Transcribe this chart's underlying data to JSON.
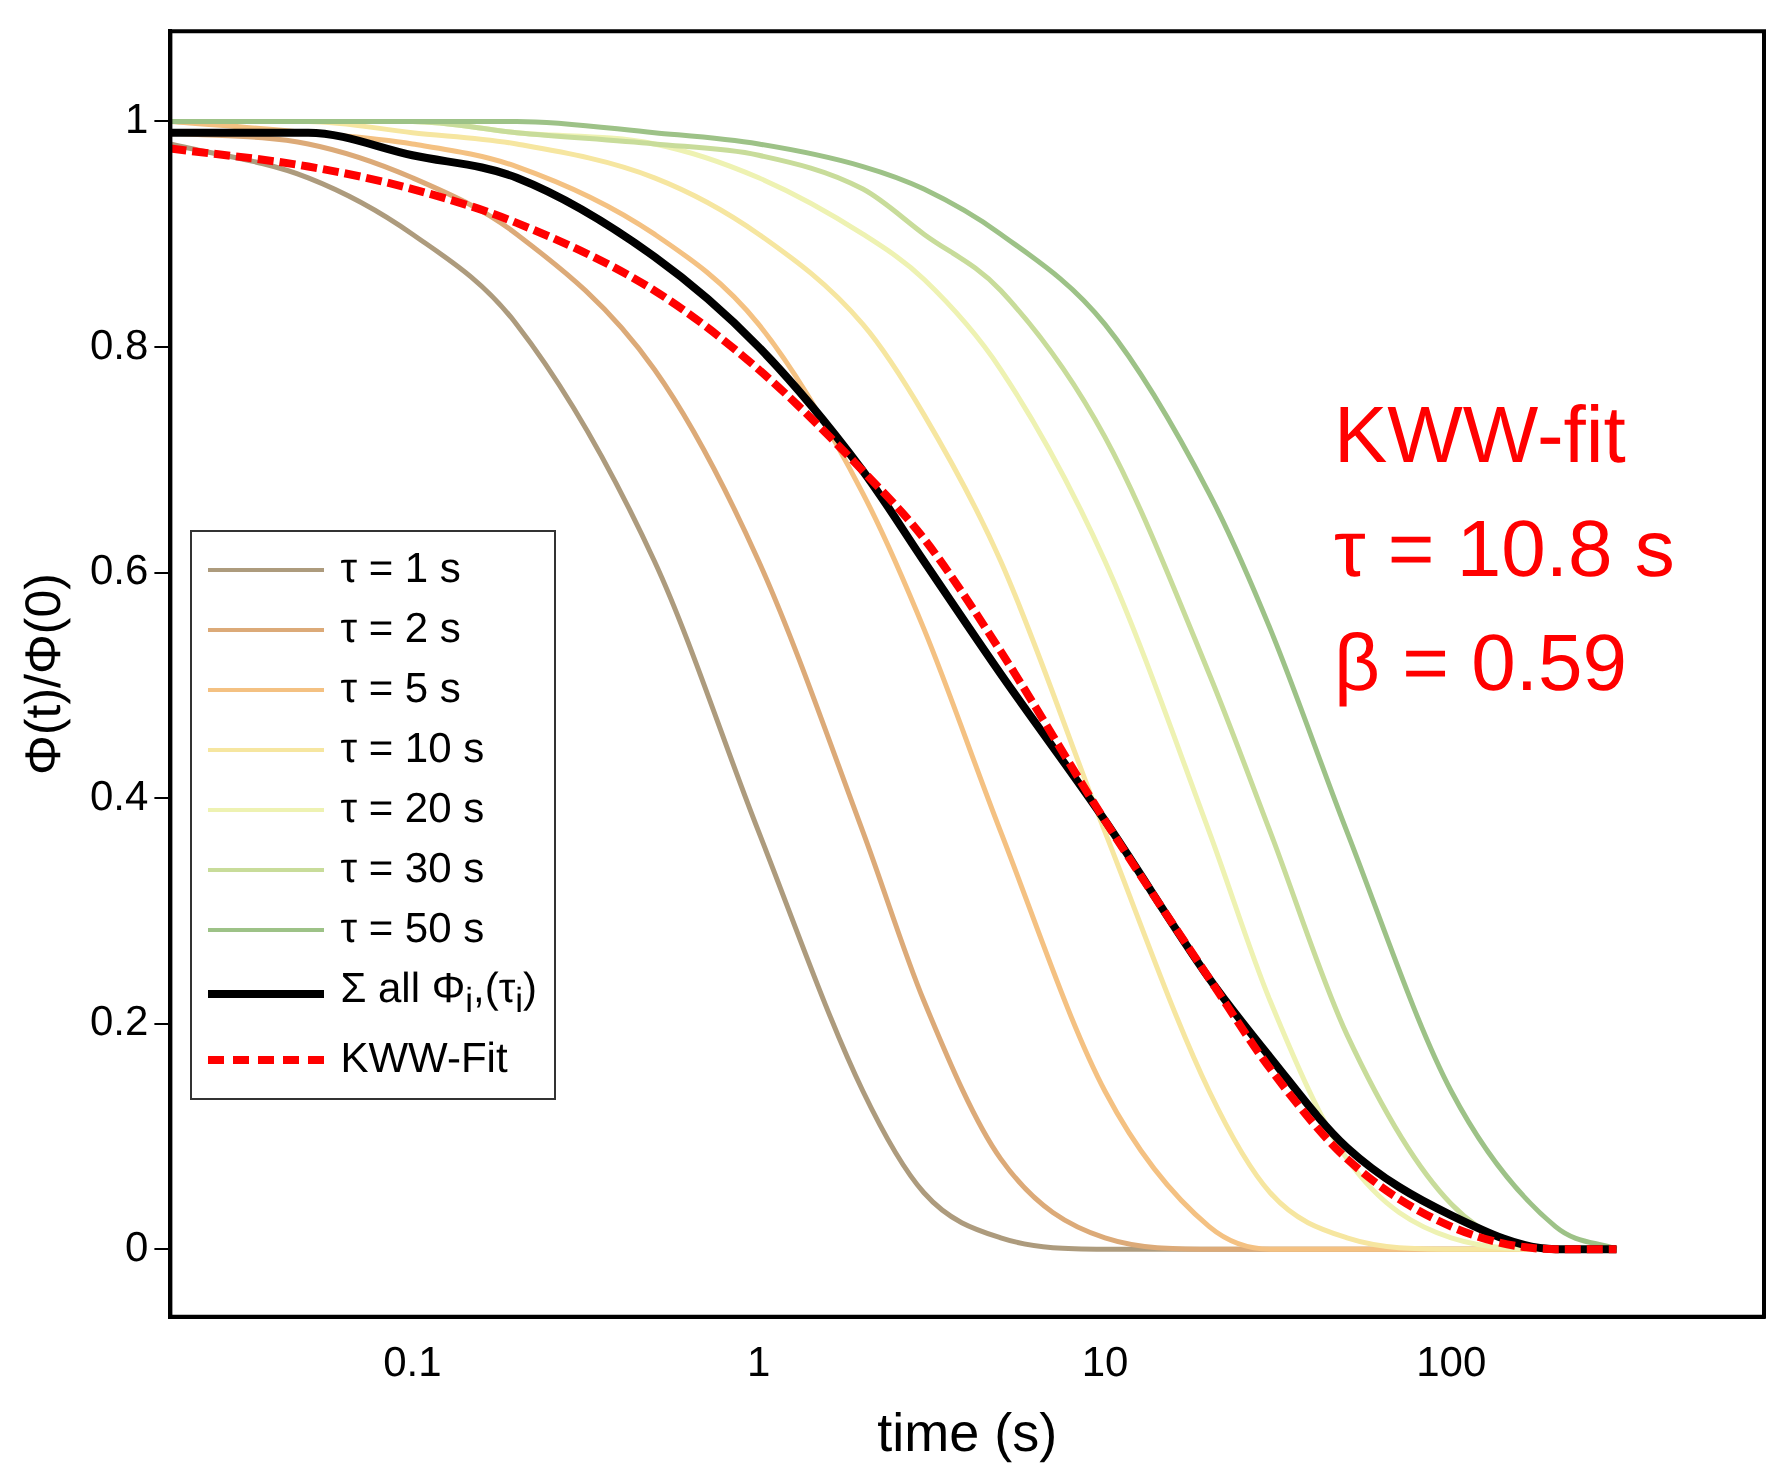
{
  "chart_data": {
    "type": "line",
    "xlabel": "time (s)",
    "ylabel": "Φ(t)/Φ(0)",
    "log": "x",
    "grid": false,
    "legend": "left",
    "marker": "none",
    "xlim": [
      0.02,
      800
    ],
    "xticks": [
      0.1,
      1,
      10,
      100
    ],
    "ylim": [
      -0.06,
      1.08
    ],
    "yticks": [
      0,
      0.2,
      0.4,
      0.6,
      0.8,
      1
    ],
    "x": [
      0.02,
      0.05,
      0.1,
      0.2,
      0.5,
      1,
      2,
      3,
      5,
      10,
      20,
      30,
      50,
      100,
      200,
      300
    ],
    "series": [
      {
        "name": "τ = 1 s",
        "color": "#ad9b7d",
        "values": [
          0.98,
          0.95,
          0.9,
          0.82,
          0.61,
          0.37,
          0.14,
          0.05,
          0.01,
          0,
          0,
          0,
          0,
          0,
          0,
          0
        ]
      },
      {
        "name": "τ = 2 s",
        "color": "#dcaa78",
        "values": [
          0.99,
          0.98,
          0.95,
          0.9,
          0.78,
          0.61,
          0.37,
          0.22,
          0.08,
          0.01,
          0,
          0,
          0,
          0,
          0,
          0
        ]
      },
      {
        "name": "τ = 5 s",
        "color": "#f4c182",
        "values": [
          1,
          0.99,
          0.98,
          0.96,
          0.9,
          0.82,
          0.67,
          0.55,
          0.37,
          0.14,
          0.02,
          0,
          0,
          0,
          0,
          0
        ]
      },
      {
        "name": "τ = 10 s",
        "color": "#f6e6a0",
        "values": [
          1,
          1,
          0.99,
          0.98,
          0.95,
          0.9,
          0.82,
          0.74,
          0.61,
          0.37,
          0.14,
          0.05,
          0.01,
          0,
          0,
          0
        ]
      },
      {
        "name": "τ = 20 s",
        "color": "#eef2b2",
        "values": [
          1,
          1,
          1,
          0.99,
          0.98,
          0.95,
          0.9,
          0.86,
          0.78,
          0.61,
          0.37,
          0.22,
          0.08,
          0.01,
          0,
          0
        ]
      },
      {
        "name": "τ = 30 s",
        "color": "#c8dc9a",
        "values": [
          1,
          1,
          1,
          0.99,
          0.98,
          0.97,
          0.94,
          0.9,
          0.85,
          0.72,
          0.51,
          0.37,
          0.19,
          0.04,
          0,
          0
        ]
      },
      {
        "name": "τ = 50 s",
        "color": "#9dc287",
        "values": [
          1,
          1,
          1,
          1,
          0.99,
          0.98,
          0.96,
          0.94,
          0.9,
          0.82,
          0.67,
          0.55,
          0.37,
          0.14,
          0.02,
          0
        ]
      },
      {
        "name": "Σ all Φ$_{i}$,(τ$_{i}$)",
        "color": "#000000",
        "values": [
          0.99,
          0.99,
          0.97,
          0.95,
          0.88,
          0.8,
          0.69,
          0.61,
          0.51,
          0.38,
          0.24,
          0.17,
          0.09,
          0.03,
          0,
          0
        ]
      },
      {
        "name": "KWW-Fit",
        "color": "#ff0000",
        "line_style": "dashed",
        "values": [
          0.976,
          0.96,
          0.94,
          0.91,
          0.85,
          0.78,
          0.69,
          0.63,
          0.53,
          0.38,
          0.24,
          0.16,
          0.08,
          0.02,
          0,
          0
        ]
      }
    ],
    "annotations": [
      "KWW-fit",
      "τ = 10.8 s",
      "β = 0.59"
    ]
  }
}
